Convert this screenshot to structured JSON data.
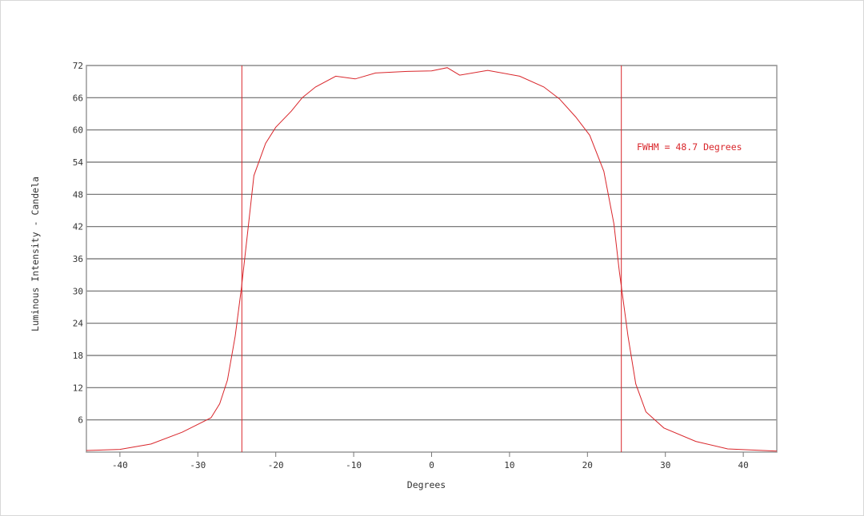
{
  "chart_data": {
    "type": "line",
    "title": "",
    "xlabel": "Degrees",
    "ylabel": "Luminous Intensity - Candela",
    "xlim": [
      -44.3,
      44.3
    ],
    "ylim": [
      0,
      72
    ],
    "x_ticks": [
      -40,
      -30,
      -20,
      -10,
      0,
      10,
      20,
      30,
      40
    ],
    "y_ticks": [
      6,
      12,
      18,
      24,
      30,
      36,
      42,
      48,
      54,
      60,
      66,
      72
    ],
    "grid": "horizontal",
    "series_color": "#d9262b",
    "series": [
      {
        "x": [
          -44.3,
          -40,
          -36,
          -32,
          -28.3,
          -27.2,
          -26.2,
          -25.2,
          -24.4,
          -23.6,
          -22.8,
          -21.3,
          -20,
          -18,
          -16.6,
          -14.9,
          -12.3,
          -9.8,
          -7.2,
          -3.1,
          0,
          2,
          3.6,
          7.2,
          11.3,
          14.4,
          16.4,
          18.5,
          20.3,
          22.1,
          23.4,
          24.1,
          25.2,
          26.2,
          27.5,
          29.8,
          33.9,
          38,
          44.3
        ],
        "y": [
          0.3,
          0.5,
          1.5,
          3.7,
          6.4,
          9,
          13.4,
          21.6,
          30.6,
          41,
          51.5,
          57.5,
          60.5,
          63.5,
          66,
          68,
          70,
          69.5,
          70.6,
          70.9,
          71,
          71.6,
          70.2,
          71.1,
          70,
          68,
          65.8,
          62.4,
          59,
          52.3,
          42.5,
          33.6,
          21.6,
          12.7,
          7.5,
          4.5,
          2,
          0.6,
          0.2
        ]
      }
    ],
    "markers": [
      {
        "type": "vline",
        "x": -24.35,
        "color": "#d9262b"
      },
      {
        "type": "vline",
        "x": 24.35,
        "color": "#d9262b"
      }
    ],
    "annotation": "FWHM = 48.7 Degrees"
  }
}
